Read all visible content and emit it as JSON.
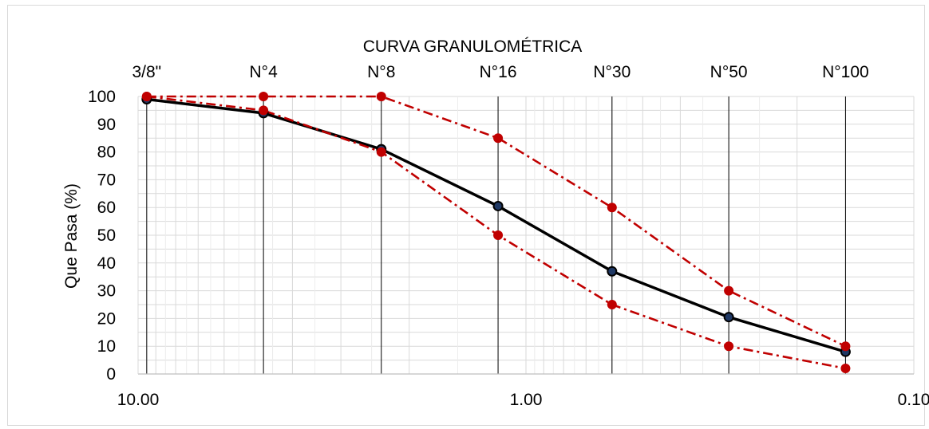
{
  "chart_data": {
    "type": "line",
    "title": "CURVA GRANULOMÉTRICA",
    "xlabel": "",
    "ylabel": "Que Pasa (%)",
    "x_scale": "log",
    "x_reversed": true,
    "xlim": [
      10.0,
      0.1
    ],
    "ylim": [
      0,
      100
    ],
    "y_ticks": [
      "0",
      "10",
      "20",
      "30",
      "40",
      "50",
      "60",
      "70",
      "80",
      "90",
      "100"
    ],
    "x_ticks": [
      {
        "value": 10.0,
        "label": "10.00"
      },
      {
        "value": 1.0,
        "label": "1.00"
      },
      {
        "value": 0.1,
        "label": "0.10"
      }
    ],
    "sieves": [
      {
        "label": "3/8\"",
        "opening": 9.5
      },
      {
        "label": "N°4",
        "opening": 4.75
      },
      {
        "label": "N°8",
        "opening": 2.36
      },
      {
        "label": "N°16",
        "opening": 1.18
      },
      {
        "label": "N°30",
        "opening": 0.6
      },
      {
        "label": "N°50",
        "opening": 0.3
      },
      {
        "label": "N°100",
        "opening": 0.15
      }
    ],
    "grid": true,
    "series": [
      {
        "style": "solid",
        "color": "#000000",
        "marker_color": "#1f3864",
        "x": [
          9.5,
          4.75,
          2.36,
          1.18,
          0.6,
          0.3,
          0.15
        ],
        "y": [
          99,
          94,
          81,
          60.5,
          37,
          20.5,
          8
        ]
      },
      {
        "style": "dash-dot",
        "color": "#c00000",
        "marker_color": "#c00000",
        "x": [
          9.5,
          4.75,
          2.36,
          1.18,
          0.6,
          0.3,
          0.15
        ],
        "y": [
          100,
          100,
          100,
          85,
          60,
          30,
          10
        ]
      },
      {
        "style": "dash-dot",
        "color": "#c00000",
        "marker_color": "#c00000",
        "x": [
          9.5,
          4.75,
          2.36,
          1.18,
          0.6,
          0.3,
          0.15
        ],
        "y": [
          100,
          95,
          80,
          50,
          25,
          10,
          2
        ]
      }
    ]
  }
}
